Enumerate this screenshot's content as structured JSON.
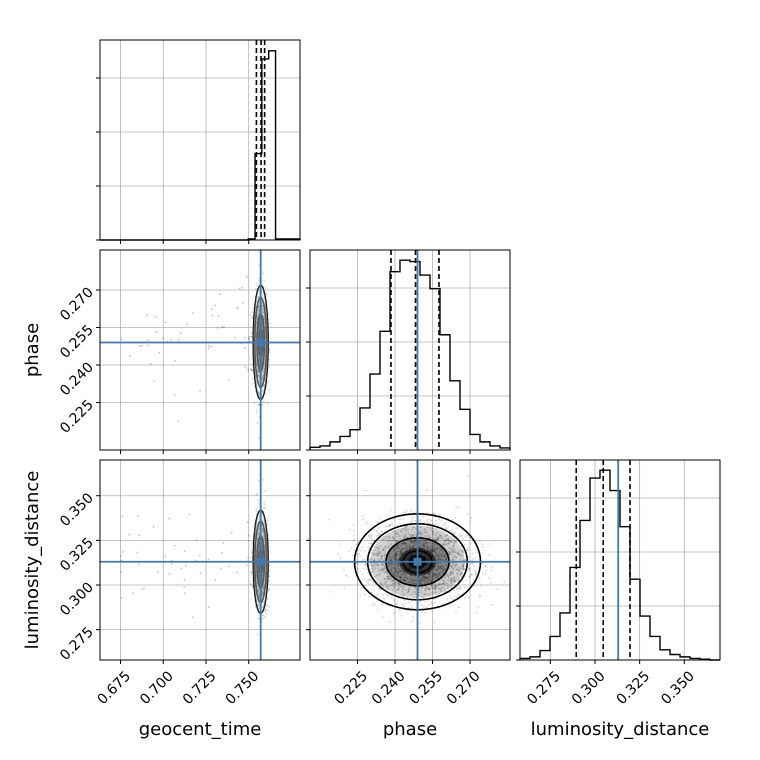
{
  "chart_data": {
    "type": "corner",
    "parameters": [
      "geocent_time",
      "phase",
      "luminosity_distance"
    ],
    "axis_labels": {
      "geocent_time": "geocent_time",
      "phase": "phase",
      "luminosity_distance": "luminosity_distance"
    },
    "ranges": {
      "geocent_time": [
        0.663,
        0.78
      ],
      "phase": [
        0.206,
        0.286
      ],
      "luminosity_distance": [
        0.258,
        0.37
      ]
    },
    "ticks": {
      "geocent_time": [
        "0.675",
        "0.700",
        "0.725",
        "0.750"
      ],
      "phase": [
        "0.225",
        "0.240",
        "0.255",
        "0.270"
      ],
      "luminosity_distance": [
        "0.275",
        "0.300",
        "0.325",
        "0.350"
      ]
    },
    "truths": {
      "geocent_time": 0.757,
      "phase": 0.249,
      "luminosity_distance": 0.313
    },
    "quantiles": {
      "geocent_time": [
        0.7545,
        0.7572,
        0.7593
      ],
      "phase": [
        0.2384,
        0.2482,
        0.2576
      ],
      "luminosity_distance": [
        0.2895,
        0.3046,
        0.3196
      ]
    },
    "histograms": {
      "geocent_time": {
        "edges": [
          0.663,
          0.7497,
          0.7537,
          0.7577,
          0.7617,
          0.7657,
          0.78
        ],
        "counts": [
          0,
          2,
          160,
          335,
          350,
          2
        ]
      },
      "phase": {
        "edges": [
          0.206,
          0.21,
          0.214,
          0.218,
          0.222,
          0.226,
          0.23,
          0.234,
          0.238,
          0.242,
          0.246,
          0.25,
          0.254,
          0.258,
          0.262,
          0.266,
          0.27,
          0.274,
          0.278,
          0.282,
          0.286
        ],
        "counts": [
          4,
          6,
          12,
          20,
          30,
          62,
          112,
          175,
          263,
          280,
          278,
          258,
          238,
          170,
          102,
          60,
          23,
          12,
          6,
          3
        ]
      },
      "luminosity_distance": {
        "edges": [
          0.258,
          0.2636,
          0.2692,
          0.2748,
          0.2804,
          0.286,
          0.2916,
          0.2972,
          0.3028,
          0.3084,
          0.314,
          0.3196,
          0.3252,
          0.3308,
          0.3364,
          0.342,
          0.3476,
          0.3532,
          0.3588,
          0.3644,
          0.37
        ],
        "counts": [
          2,
          4,
          12,
          30,
          60,
          118,
          178,
          232,
          242,
          216,
          170,
          103,
          56,
          30,
          13,
          7,
          4,
          2,
          1,
          0
        ]
      }
    },
    "histogram_ylim": {
      "geocent_time": [
        0,
        370
      ],
      "phase": [
        0,
        295
      ],
      "luminosity_distance": [
        0,
        255
      ]
    },
    "grid": true,
    "color_truth": "#4477aa",
    "color_lines": "#000000",
    "color_grid": "#b0b0b0"
  }
}
